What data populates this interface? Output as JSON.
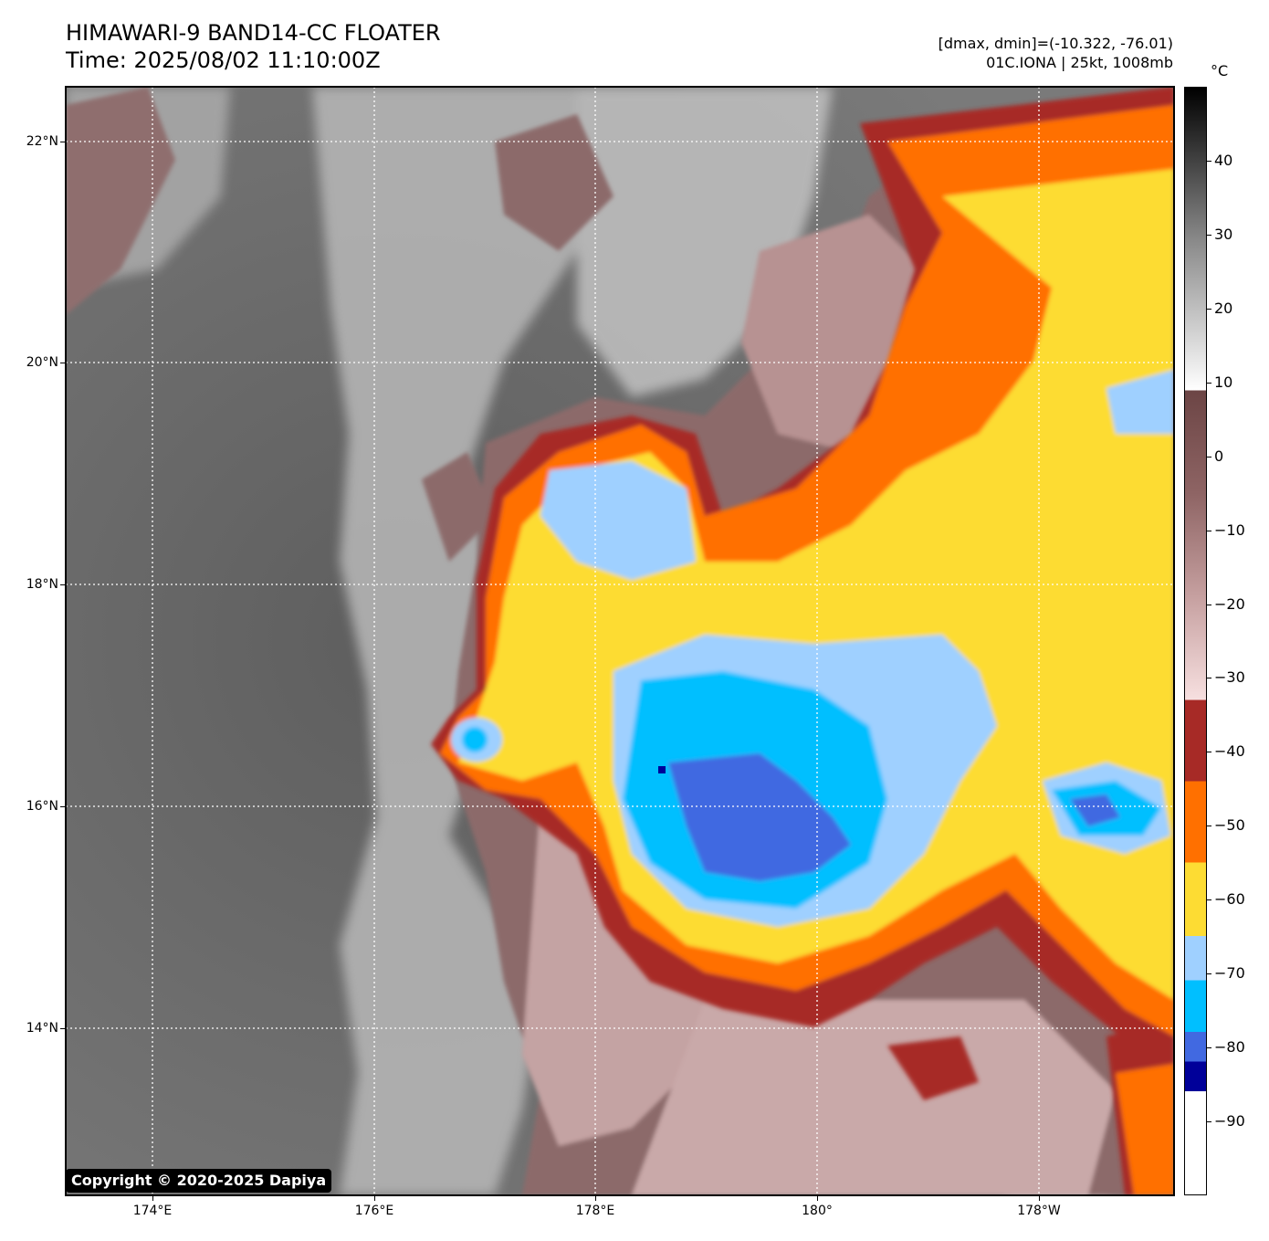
{
  "header": {
    "title": "HIMAWARI-9 BAND14-CC FLOATER",
    "time": "Time: 2025/08/02 11:10:00Z",
    "range": "[dmax, dmin]=(-10.322, -76.01)",
    "storm": "01C.IONA | 25kt, 1008mb"
  },
  "axes": {
    "lat_labels": [
      "22°N",
      "20°N",
      "18°N",
      "16°N",
      "14°N"
    ],
    "lat_values": [
      22,
      20,
      18,
      16,
      14
    ],
    "lon_labels": [
      "174°E",
      "176°E",
      "178°E",
      "180°",
      "178°W"
    ],
    "lon_values": [
      174,
      176,
      178,
      180,
      182
    ],
    "lon_range": [
      173.2,
      183.2
    ],
    "lat_range": [
      12.5,
      22.5
    ],
    "grid": "dotted white"
  },
  "colorbar": {
    "unit": "°C",
    "labels": [
      "40",
      "30",
      "20",
      "10",
      "0",
      "−10",
      "−20",
      "−30",
      "−40",
      "−50",
      "−60",
      "−70",
      "−80",
      "−90"
    ],
    "values": [
      40,
      30,
      20,
      10,
      0,
      -10,
      -20,
      -30,
      -40,
      -50,
      -60,
      -70,
      -80,
      -90
    ],
    "range": [
      -100,
      50
    ],
    "stops": [
      {
        "from": -100,
        "to": -86,
        "color": "#ffffff"
      },
      {
        "from": -86,
        "to": -82,
        "color": "#000099"
      },
      {
        "from": -82,
        "to": -78,
        "color": "#4169e1"
      },
      {
        "from": -78,
        "to": -71,
        "color": "#00bfff"
      },
      {
        "from": -71,
        "to": -65,
        "color": "#9fd0ff"
      },
      {
        "from": -65,
        "to": -55,
        "color": "#fddc33"
      },
      {
        "from": -55,
        "to": -44,
        "color": "#ff7000"
      },
      {
        "from": -44,
        "to": -33,
        "color": "#a72a26"
      },
      {
        "from": -33,
        "to": 9,
        "gradient": [
          "#f7e0e0",
          "#c6a0a0",
          "#8e6464",
          "#6c4545"
        ]
      },
      {
        "from": 9,
        "to": 50,
        "gradient": [
          "#ffffff",
          "#888888",
          "#000000"
        ]
      }
    ]
  },
  "colors": {
    "clear_sky": "#6e6e6e",
    "low_cloud": "#b5b5b5",
    "mid_cloud": "#8c6a6a",
    "high_cloud": "#c9a8a8",
    "c_minus40": "#a72a26",
    "c_minus50": "#ff7000",
    "c_minus60": "#fddc33",
    "c_minus70": "#9fd0ff",
    "c_minus75": "#00bfff",
    "c_minus80": "#4169e1",
    "c_minus85": "#000099"
  },
  "copyright": "Copyright © 2020-2025 Dapiya"
}
